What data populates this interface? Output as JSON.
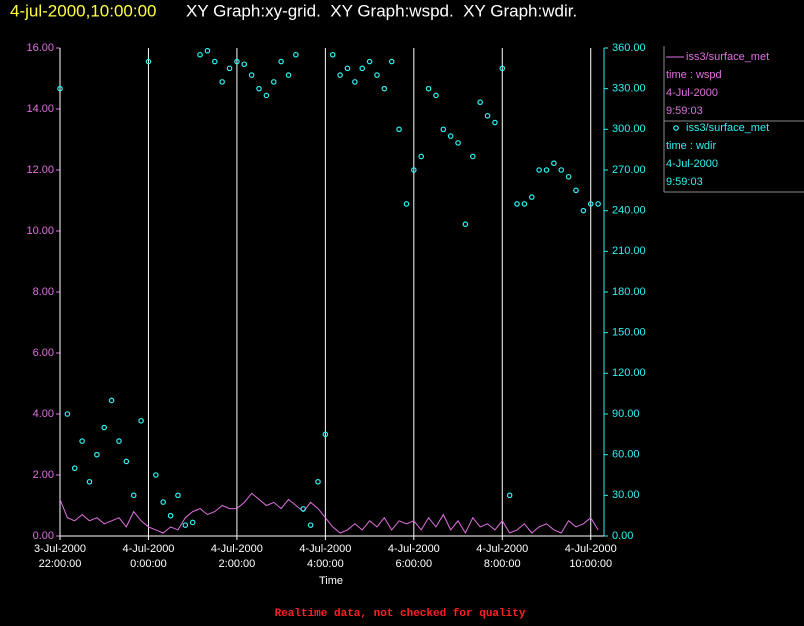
{
  "chart_data": {
    "type": "line+scatter",
    "title": "4-jul-2000,10:00:00",
    "title_graphs": "XY Graph:xy-grid.  XY Graph:wspd.  XY Graph:wdir.",
    "xlabel": "Time",
    "footer": "Realtime data, not checked for quality",
    "grid": true,
    "xlim": [
      "2000-07-03T22:00",
      "2000-07-04T10:18"
    ],
    "xticks": [
      {
        "value": "2000-07-03T22:00",
        "label": [
          "3-Jul-2000",
          "22:00:00"
        ]
      },
      {
        "value": "2000-07-04T00:00",
        "label": [
          "4-Jul-2000",
          "0:00:00"
        ]
      },
      {
        "value": "2000-07-04T02:00",
        "label": [
          "4-Jul-2000",
          "2:00:00"
        ]
      },
      {
        "value": "2000-07-04T04:00",
        "label": [
          "4-Jul-2000",
          "4:00:00"
        ]
      },
      {
        "value": "2000-07-04T06:00",
        "label": [
          "4-Jul-2000",
          "6:00:00"
        ]
      },
      {
        "value": "2000-07-04T08:00",
        "label": [
          "4-Jul-2000",
          "8:00:00"
        ]
      },
      {
        "value": "2000-07-04T10:00",
        "label": [
          "4-Jul-2000",
          "10:00:00"
        ]
      }
    ],
    "ylim": [
      0,
      16
    ],
    "yticks": [
      {
        "value": 0,
        "label": "0.00"
      },
      {
        "value": 2,
        "label": "2.00"
      },
      {
        "value": 4,
        "label": "4.00"
      },
      {
        "value": 6,
        "label": "6.00"
      },
      {
        "value": 8,
        "label": "8.00"
      },
      {
        "value": 10,
        "label": "10.00"
      },
      {
        "value": 12,
        "label": "12.00"
      },
      {
        "value": 14,
        "label": "14.00"
      },
      {
        "value": 16,
        "label": "16.00"
      }
    ],
    "y2lim": [
      0,
      360
    ],
    "y2ticks": [
      {
        "value": 0,
        "label": "0.00"
      },
      {
        "value": 30,
        "label": "30.00"
      },
      {
        "value": 60,
        "label": "60.00"
      },
      {
        "value": 90,
        "label": "90.00"
      },
      {
        "value": 120,
        "label": "120.00"
      },
      {
        "value": 150,
        "label": "150.00"
      },
      {
        "value": 180,
        "label": "180.00"
      },
      {
        "value": 210,
        "label": "210.00"
      },
      {
        "value": 240,
        "label": "240.00"
      },
      {
        "value": 270,
        "label": "270.00"
      },
      {
        "value": 300,
        "label": "300.00"
      },
      {
        "value": 330,
        "label": "330.00"
      },
      {
        "value": 360,
        "label": "360.00"
      }
    ],
    "x": [
      "2000-07-03T22:00",
      "2000-07-03T22:10",
      "2000-07-03T22:20",
      "2000-07-03T22:30",
      "2000-07-03T22:40",
      "2000-07-03T22:50",
      "2000-07-03T23:00",
      "2000-07-03T23:10",
      "2000-07-03T23:20",
      "2000-07-03T23:30",
      "2000-07-03T23:40",
      "2000-07-03T23:50",
      "2000-07-04T00:00",
      "2000-07-04T00:10",
      "2000-07-04T00:20",
      "2000-07-04T00:30",
      "2000-07-04T00:40",
      "2000-07-04T00:50",
      "2000-07-04T01:00",
      "2000-07-04T01:10",
      "2000-07-04T01:20",
      "2000-07-04T01:30",
      "2000-07-04T01:40",
      "2000-07-04T01:50",
      "2000-07-04T02:00",
      "2000-07-04T02:10",
      "2000-07-04T02:20",
      "2000-07-04T02:30",
      "2000-07-04T02:40",
      "2000-07-04T02:50",
      "2000-07-04T03:00",
      "2000-07-04T03:10",
      "2000-07-04T03:20",
      "2000-07-04T03:30",
      "2000-07-04T03:40",
      "2000-07-04T03:50",
      "2000-07-04T04:00",
      "2000-07-04T04:10",
      "2000-07-04T04:20",
      "2000-07-04T04:30",
      "2000-07-04T04:40",
      "2000-07-04T04:50",
      "2000-07-04T05:00",
      "2000-07-04T05:10",
      "2000-07-04T05:20",
      "2000-07-04T05:30",
      "2000-07-04T05:40",
      "2000-07-04T05:50",
      "2000-07-04T06:00",
      "2000-07-04T06:10",
      "2000-07-04T06:20",
      "2000-07-04T06:30",
      "2000-07-04T06:40",
      "2000-07-04T06:50",
      "2000-07-04T07:00",
      "2000-07-04T07:10",
      "2000-07-04T07:20",
      "2000-07-04T07:30",
      "2000-07-04T07:40",
      "2000-07-04T07:50",
      "2000-07-04T08:00",
      "2000-07-04T08:10",
      "2000-07-04T08:20",
      "2000-07-04T08:30",
      "2000-07-04T08:40",
      "2000-07-04T08:50",
      "2000-07-04T09:00",
      "2000-07-04T09:10",
      "2000-07-04T09:20",
      "2000-07-04T09:30",
      "2000-07-04T09:40",
      "2000-07-04T09:50",
      "2000-07-04T10:00",
      "2000-07-04T10:10"
    ],
    "series": [
      {
        "name": "iss3/surface_met",
        "label_lines": [
          "time : wspd",
          "4-Jul-2000",
          "9:59:03"
        ],
        "type": "line",
        "axis": "y",
        "color": "#e070e0",
        "values": [
          1.2,
          0.6,
          0.5,
          0.7,
          0.5,
          0.6,
          0.4,
          0.5,
          0.6,
          0.3,
          0.8,
          0.5,
          0.3,
          0.2,
          0.1,
          0.3,
          0.2,
          0.6,
          0.8,
          0.9,
          0.7,
          0.8,
          1.0,
          0.9,
          0.9,
          1.1,
          1.4,
          1.2,
          1.0,
          1.1,
          0.9,
          1.2,
          1.0,
          0.8,
          1.1,
          0.9,
          0.6,
          0.3,
          0.1,
          0.2,
          0.4,
          0.2,
          0.5,
          0.3,
          0.6,
          0.2,
          0.5,
          0.4,
          0.5,
          0.2,
          0.6,
          0.3,
          0.7,
          0.2,
          0.5,
          0.1,
          0.6,
          0.3,
          0.4,
          0.2,
          0.5,
          0.1,
          0.2,
          0.4,
          0.1,
          0.3,
          0.4,
          0.2,
          0.1,
          0.5,
          0.3,
          0.4,
          0.6,
          0.2
        ]
      },
      {
        "name": "iss3/surface_met",
        "label_lines": [
          "time : wdir",
          "4-Jul-2000",
          "9:59:03"
        ],
        "type": "scatter",
        "axis": "y2",
        "color": "#30f0f0",
        "values": [
          330,
          90,
          50,
          70,
          40,
          60,
          80,
          100,
          70,
          55,
          30,
          85,
          350,
          45,
          25,
          15,
          30,
          8,
          10,
          355,
          358,
          350,
          335,
          345,
          350,
          348,
          340,
          330,
          325,
          335,
          350,
          340,
          355,
          20,
          8,
          40,
          75,
          355,
          340,
          345,
          335,
          345,
          350,
          340,
          330,
          350,
          300,
          245,
          270,
          280,
          330,
          325,
          300,
          295,
          290,
          230,
          280,
          320,
          310,
          305,
          345,
          30,
          245,
          245,
          250,
          270,
          270,
          275,
          270,
          265,
          255,
          240,
          245,
          245
        ]
      }
    ]
  }
}
